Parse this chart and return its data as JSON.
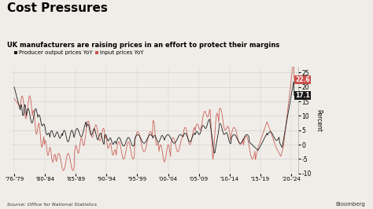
{
  "title": "Cost Pressures",
  "subtitle": "UK manufacturers are raising prices in an effort to protect their margins",
  "legend_labels": [
    "Producer output prices YoY",
    "Input prices YoY"
  ],
  "line_colors": [
    "#1a1a1a",
    "#c8524a"
  ],
  "ylabel": "Percent",
  "xlabel_ticks": [
    "'76-'79",
    "'80-'84",
    "'85-'89",
    "'90-'94",
    "'95-'99",
    "'00-'04",
    "'05-'09",
    "'10-'14",
    "'15-'19",
    "'20-'24"
  ],
  "source": "Source: Office for National Statistics",
  "annotation_output": {
    "value": "17.1",
    "color": "#1a1a1a",
    "text_color": "#ffffff"
  },
  "annotation_input": {
    "value": "22.6",
    "color": "#c8524a",
    "text_color": "#ffffff"
  },
  "ylim": [
    -10,
    27
  ],
  "yticks": [
    -10,
    -5,
    0,
    5,
    10,
    15,
    20,
    25
  ],
  "background_color": "#f0ede8",
  "bloomberg_text": "Bloomberg"
}
